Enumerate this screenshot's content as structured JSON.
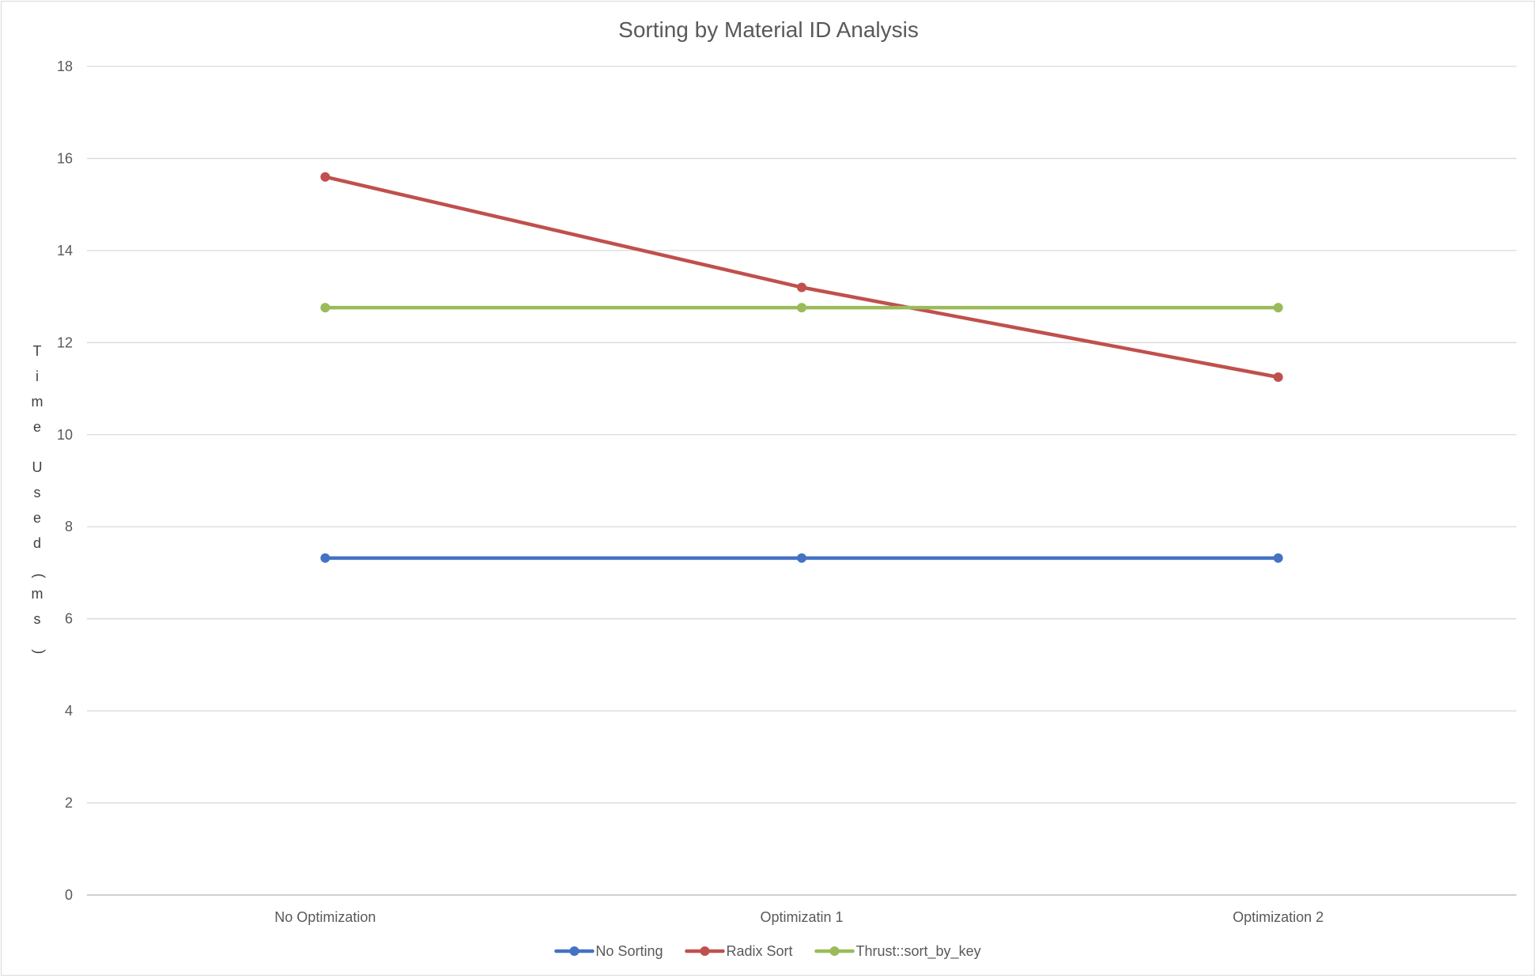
{
  "chart_data": {
    "type": "line",
    "title": "Sorting by Material ID Analysis",
    "xlabel": "",
    "ylabel": "Time Used(ms)",
    "categories": [
      "No Optimization",
      "Optimizatin 1",
      "Optimization 2"
    ],
    "ylim": [
      0,
      18
    ],
    "yticks": [
      0,
      2,
      4,
      6,
      8,
      10,
      12,
      14,
      16,
      18
    ],
    "grid": true,
    "legend_position": "bottom",
    "series": [
      {
        "name": "No Sorting",
        "color": "#4472c4",
        "values": [
          7.32,
          7.32,
          7.32
        ]
      },
      {
        "name": "Radix Sort",
        "color": "#c0504d",
        "values": [
          15.6,
          13.2,
          11.25
        ]
      },
      {
        "name": "Thrust::sort_by_key",
        "color": "#9bbb59",
        "values": [
          12.76,
          12.76,
          12.76
        ]
      }
    ]
  }
}
